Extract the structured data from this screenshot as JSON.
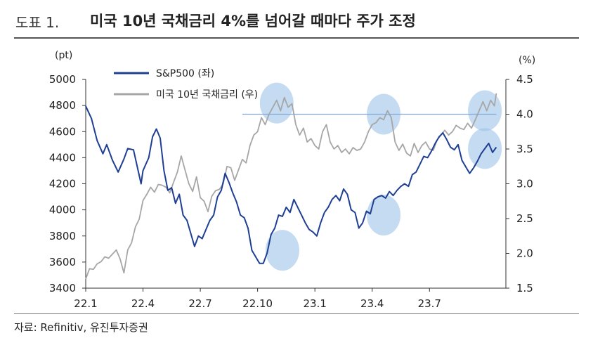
{
  "header": {
    "figure_label": "도표 1.",
    "title": "미국 10년 국채금리 4%를 넘어갈 때마다 주가 조정"
  },
  "source": "자료: Refinitiv, 유진투자증권",
  "colors": {
    "sp500": "#1f3f94",
    "treasury": "#a6a6a6",
    "highlight": "#9cc3e9",
    "refline": "#7fa8d6"
  },
  "chart_data": {
    "type": "line",
    "left_unit": "(pt)",
    "right_unit": "(%)",
    "x_ticks": [
      "22.1",
      "22.4",
      "22.7",
      "22.10",
      "23.1",
      "23.4",
      "23.7"
    ],
    "x_range": [
      0,
      22.0
    ],
    "y_left": {
      "min": 3400,
      "max": 5000,
      "ticks": [
        3400,
        3600,
        3800,
        4000,
        4200,
        4400,
        4600,
        4800,
        5000
      ]
    },
    "y_right": {
      "min": 1.5,
      "max": 4.5,
      "ticks": [
        "1.5",
        "2.0",
        "2.5",
        "3.0",
        "3.5",
        "4.0",
        "4.5"
      ]
    },
    "reference_line": {
      "axis": "right",
      "value": 4.0,
      "x_from": 8.2,
      "x_to": 21.5
    },
    "highlights": [
      {
        "x": 10.0,
        "y": 4.16,
        "axis": "right"
      },
      {
        "x": 10.3,
        "y": 3690,
        "axis": "left"
      },
      {
        "x": 15.6,
        "y": 4.0,
        "axis": "right"
      },
      {
        "x": 15.6,
        "y": 3960,
        "axis": "left"
      },
      {
        "x": 20.9,
        "y": 4.05,
        "axis": "right"
      },
      {
        "x": 20.9,
        "y": 4470,
        "axis": "left"
      }
    ],
    "series": [
      {
        "name": "S&P500 (좌)",
        "axis": "left",
        "points": [
          [
            0.0,
            4796
          ],
          [
            0.3,
            4700
          ],
          [
            0.6,
            4530
          ],
          [
            0.9,
            4430
          ],
          [
            1.1,
            4500
          ],
          [
            1.4,
            4380
          ],
          [
            1.7,
            4290
          ],
          [
            2.0,
            4390
          ],
          [
            2.2,
            4470
          ],
          [
            2.5,
            4460
          ],
          [
            2.7,
            4330
          ],
          [
            2.9,
            4200
          ],
          [
            3.0,
            4300
          ],
          [
            3.3,
            4400
          ],
          [
            3.5,
            4560
          ],
          [
            3.7,
            4620
          ],
          [
            3.9,
            4550
          ],
          [
            4.1,
            4300
          ],
          [
            4.3,
            4150
          ],
          [
            4.5,
            4170
          ],
          [
            4.7,
            4050
          ],
          [
            4.9,
            4120
          ],
          [
            5.1,
            3960
          ],
          [
            5.3,
            3920
          ],
          [
            5.5,
            3820
          ],
          [
            5.7,
            3720
          ],
          [
            5.9,
            3800
          ],
          [
            6.1,
            3780
          ],
          [
            6.3,
            3850
          ],
          [
            6.5,
            3920
          ],
          [
            6.7,
            3960
          ],
          [
            6.9,
            4100
          ],
          [
            7.1,
            4150
          ],
          [
            7.3,
            4280
          ],
          [
            7.5,
            4210
          ],
          [
            7.7,
            4130
          ],
          [
            7.9,
            4060
          ],
          [
            8.1,
            3960
          ],
          [
            8.3,
            3940
          ],
          [
            8.5,
            3860
          ],
          [
            8.7,
            3690
          ],
          [
            8.9,
            3640
          ],
          [
            9.1,
            3590
          ],
          [
            9.3,
            3590
          ],
          [
            9.5,
            3670
          ],
          [
            9.7,
            3810
          ],
          [
            9.9,
            3860
          ],
          [
            10.1,
            3960
          ],
          [
            10.3,
            3950
          ],
          [
            10.5,
            4020
          ],
          [
            10.7,
            3980
          ],
          [
            10.9,
            4080
          ],
          [
            11.1,
            4020
          ],
          [
            11.3,
            3960
          ],
          [
            11.5,
            3900
          ],
          [
            11.7,
            3850
          ],
          [
            11.9,
            3830
          ],
          [
            12.1,
            3800
          ],
          [
            12.3,
            3900
          ],
          [
            12.5,
            3980
          ],
          [
            12.7,
            4020
          ],
          [
            12.9,
            4080
          ],
          [
            13.1,
            4110
          ],
          [
            13.3,
            4070
          ],
          [
            13.5,
            4160
          ],
          [
            13.7,
            4120
          ],
          [
            13.9,
            4000
          ],
          [
            14.1,
            3980
          ],
          [
            14.3,
            3860
          ],
          [
            14.5,
            3900
          ],
          [
            14.7,
            3990
          ],
          [
            14.9,
            3970
          ],
          [
            15.1,
            4080
          ],
          [
            15.3,
            4100
          ],
          [
            15.5,
            4110
          ],
          [
            15.7,
            4090
          ],
          [
            15.9,
            4140
          ],
          [
            16.1,
            4110
          ],
          [
            16.3,
            4150
          ],
          [
            16.5,
            4180
          ],
          [
            16.7,
            4200
          ],
          [
            16.9,
            4180
          ],
          [
            17.1,
            4270
          ],
          [
            17.3,
            4290
          ],
          [
            17.5,
            4350
          ],
          [
            17.7,
            4410
          ],
          [
            17.9,
            4400
          ],
          [
            18.1,
            4450
          ],
          [
            18.3,
            4510
          ],
          [
            18.5,
            4560
          ],
          [
            18.7,
            4590
          ],
          [
            18.9,
            4540
          ],
          [
            19.1,
            4480
          ],
          [
            19.3,
            4460
          ],
          [
            19.5,
            4500
          ],
          [
            19.7,
            4380
          ],
          [
            19.9,
            4330
          ],
          [
            20.1,
            4280
          ],
          [
            20.3,
            4320
          ],
          [
            20.5,
            4370
          ],
          [
            20.7,
            4430
          ],
          [
            20.9,
            4470
          ],
          [
            21.1,
            4510
          ],
          [
            21.3,
            4440
          ],
          [
            21.5,
            4480
          ]
        ]
      },
      {
        "name": "미국 10년 국채금리 (우)",
        "axis": "right",
        "points": [
          [
            0.0,
            1.63
          ],
          [
            0.2,
            1.78
          ],
          [
            0.4,
            1.77
          ],
          [
            0.6,
            1.85
          ],
          [
            0.8,
            1.88
          ],
          [
            1.0,
            1.95
          ],
          [
            1.2,
            1.93
          ],
          [
            1.4,
            1.99
          ],
          [
            1.6,
            2.05
          ],
          [
            1.8,
            1.92
          ],
          [
            2.0,
            1.72
          ],
          [
            2.2,
            2.05
          ],
          [
            2.4,
            2.15
          ],
          [
            2.6,
            2.38
          ],
          [
            2.8,
            2.49
          ],
          [
            3.0,
            2.76
          ],
          [
            3.2,
            2.85
          ],
          [
            3.4,
            2.95
          ],
          [
            3.6,
            2.88
          ],
          [
            3.8,
            2.99
          ],
          [
            4.0,
            2.98
          ],
          [
            4.2,
            2.95
          ],
          [
            4.4,
            2.87
          ],
          [
            4.6,
            3.02
          ],
          [
            4.8,
            3.17
          ],
          [
            5.0,
            3.4
          ],
          [
            5.2,
            3.2
          ],
          [
            5.4,
            3.0
          ],
          [
            5.6,
            2.89
          ],
          [
            5.8,
            3.1
          ],
          [
            6.0,
            2.8
          ],
          [
            6.2,
            2.75
          ],
          [
            6.4,
            2.6
          ],
          [
            6.6,
            2.82
          ],
          [
            6.8,
            2.9
          ],
          [
            7.0,
            2.92
          ],
          [
            7.2,
            3.0
          ],
          [
            7.4,
            3.25
          ],
          [
            7.6,
            3.23
          ],
          [
            7.8,
            3.05
          ],
          [
            8.0,
            3.2
          ],
          [
            8.2,
            3.35
          ],
          [
            8.4,
            3.3
          ],
          [
            8.6,
            3.55
          ],
          [
            8.8,
            3.7
          ],
          [
            9.0,
            3.75
          ],
          [
            9.2,
            3.95
          ],
          [
            9.4,
            3.85
          ],
          [
            9.6,
            4.0
          ],
          [
            9.8,
            4.1
          ],
          [
            10.0,
            4.2
          ],
          [
            10.2,
            4.05
          ],
          [
            10.4,
            4.24
          ],
          [
            10.6,
            4.1
          ],
          [
            10.8,
            4.15
          ],
          [
            11.0,
            3.85
          ],
          [
            11.2,
            3.7
          ],
          [
            11.4,
            3.8
          ],
          [
            11.6,
            3.6
          ],
          [
            11.8,
            3.65
          ],
          [
            12.0,
            3.55
          ],
          [
            12.2,
            3.5
          ],
          [
            12.4,
            3.75
          ],
          [
            12.6,
            3.85
          ],
          [
            12.8,
            3.6
          ],
          [
            13.0,
            3.5
          ],
          [
            13.2,
            3.55
          ],
          [
            13.4,
            3.45
          ],
          [
            13.6,
            3.5
          ],
          [
            13.8,
            3.43
          ],
          [
            14.0,
            3.52
          ],
          [
            14.2,
            3.48
          ],
          [
            14.4,
            3.5
          ],
          [
            14.6,
            3.6
          ],
          [
            14.8,
            3.75
          ],
          [
            15.0,
            3.85
          ],
          [
            15.2,
            3.88
          ],
          [
            15.4,
            3.95
          ],
          [
            15.6,
            3.92
          ],
          [
            15.8,
            4.05
          ],
          [
            16.0,
            3.95
          ],
          [
            16.2,
            3.6
          ],
          [
            16.4,
            3.48
          ],
          [
            16.6,
            3.57
          ],
          [
            16.8,
            3.44
          ],
          [
            17.0,
            3.4
          ],
          [
            17.2,
            3.58
          ],
          [
            17.4,
            3.45
          ],
          [
            17.6,
            3.55
          ],
          [
            17.8,
            3.6
          ],
          [
            18.0,
            3.5
          ],
          [
            18.2,
            3.48
          ],
          [
            18.4,
            3.63
          ],
          [
            18.6,
            3.7
          ],
          [
            18.8,
            3.77
          ],
          [
            19.0,
            3.7
          ],
          [
            19.2,
            3.75
          ],
          [
            19.4,
            3.84
          ],
          [
            19.6,
            3.8
          ],
          [
            19.8,
            3.78
          ],
          [
            20.0,
            3.87
          ],
          [
            20.2,
            3.8
          ],
          [
            20.4,
            3.92
          ],
          [
            20.6,
            4.05
          ],
          [
            20.8,
            4.18
          ],
          [
            21.0,
            4.05
          ],
          [
            21.2,
            4.2
          ],
          [
            21.4,
            4.12
          ],
          [
            21.5,
            4.3
          ]
        ]
      }
    ]
  }
}
